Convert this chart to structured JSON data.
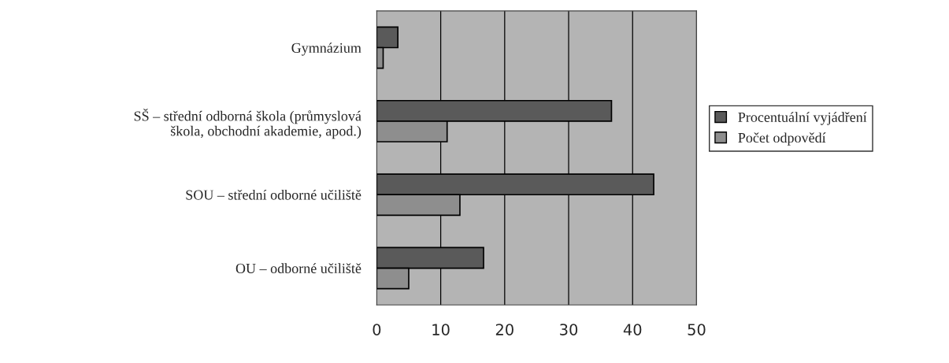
{
  "chart_data": {
    "type": "bar",
    "orientation": "horizontal",
    "categories": [
      "Gymnázium",
      "SŠ – střední odborná škola (průmyslová\nškola, obchodní akademie, apod.)",
      "SOU – střední odborné učiliště",
      "OU – odborné učiliště"
    ],
    "series": [
      {
        "name": "Procentuální vyjádření",
        "color": "#5a5a5a",
        "values": [
          3.3,
          36.7,
          43.3,
          16.7
        ]
      },
      {
        "name": "Počet odpovědí",
        "color": "#8e8e8e",
        "values": [
          1,
          11,
          13,
          5
        ]
      }
    ],
    "xlim": [
      0,
      50
    ],
    "xticks": [
      0,
      10,
      20,
      30,
      40,
      50
    ],
    "grid": "x",
    "legend": "right"
  }
}
